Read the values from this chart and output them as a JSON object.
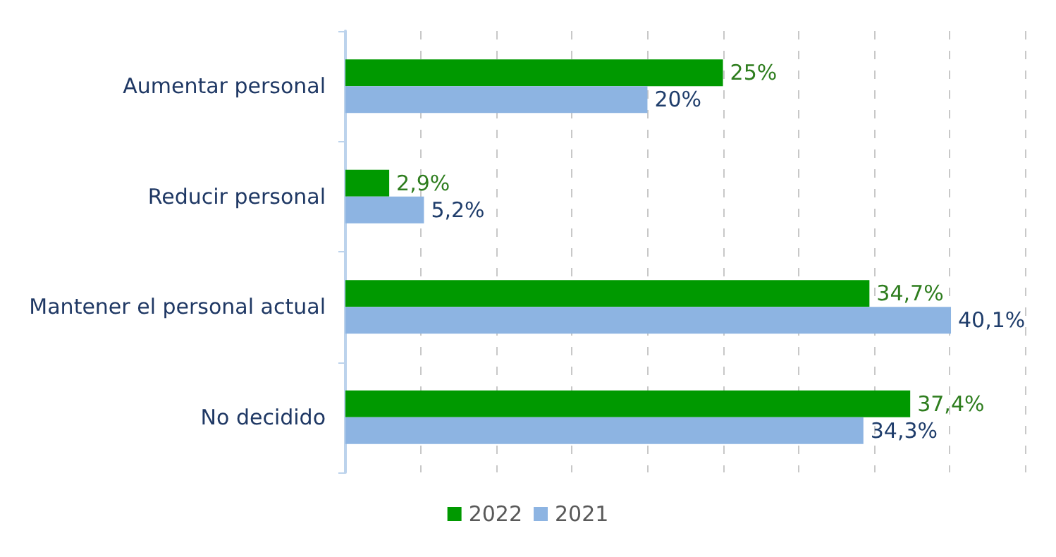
{
  "chart_data": {
    "type": "bar",
    "orientation": "horizontal",
    "categories": [
      "Aumentar personal",
      "Reducir personal",
      "Mantener el personal actual",
      "No decidido"
    ],
    "series": [
      {
        "name": "2022",
        "color": "#009900",
        "values": [
          25,
          2.9,
          34.7,
          37.4
        ],
        "value_labels": [
          "25%",
          "2,9%",
          "34,7%",
          "37,4%"
        ]
      },
      {
        "name": "2021",
        "color": "#8db4e2",
        "values": [
          20,
          5.2,
          40.1,
          34.3
        ],
        "value_labels": [
          "20%",
          "5,2%",
          "40,1%",
          "34,3%"
        ]
      }
    ],
    "xlim": [
      0,
      45
    ],
    "xticks": [
      {
        "value": 0,
        "label": null
      },
      {
        "value": 5,
        "label": null
      },
      {
        "value": 10,
        "label": null
      },
      {
        "value": 15,
        "label": null
      },
      {
        "value": 20,
        "label": null
      },
      {
        "value": 25,
        "label": null
      },
      {
        "value": 30,
        "label": null
      },
      {
        "value": 35,
        "label": null
      },
      {
        "value": 40,
        "label": null
      },
      {
        "value": 45,
        "label": null
      }
    ],
    "tick_labels": "y",
    "grid": "x",
    "legend": "bottom"
  }
}
